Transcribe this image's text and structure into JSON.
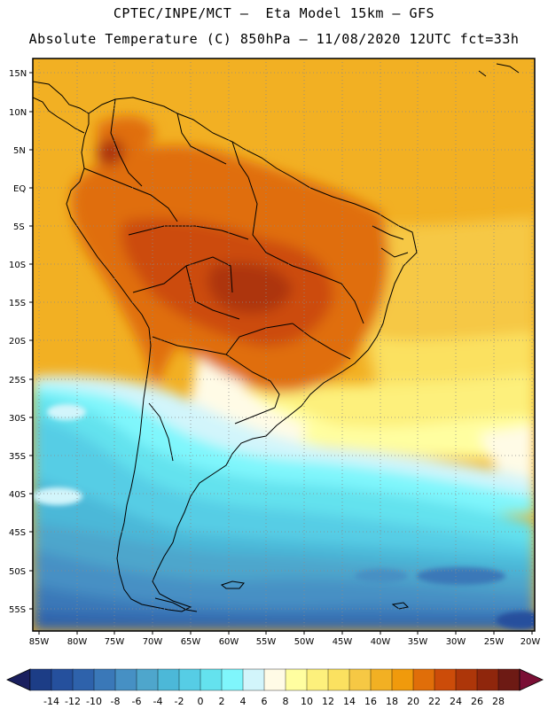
{
  "header": {
    "line1": "CPTEC/INPE/MCT –  Eta Model 15km – GFS",
    "line2": "Absolute Temperature (C) 850hPa – 11/08/2020 12UTC fct=33h"
  },
  "map": {
    "region": "South America",
    "lon_range": [
      -85,
      -20
    ],
    "lat_range": [
      -58,
      17
    ],
    "lat_ticks": [
      "15N",
      "10N",
      "5N",
      "EQ",
      "5S",
      "10S",
      "15S",
      "20S",
      "25S",
      "30S",
      "35S",
      "40S",
      "45S",
      "50S",
      "55S"
    ],
    "lon_ticks": [
      "85W",
      "80W",
      "75W",
      "70W",
      "65W",
      "60W",
      "55W",
      "50W",
      "45W",
      "40W",
      "35W",
      "30W",
      "25W",
      "20W"
    ]
  },
  "colorbar": {
    "labels": [
      "-14",
      "-12",
      "-10",
      "-8",
      "-6",
      "-4",
      "-2",
      "0",
      "2",
      "4",
      "6",
      "8",
      "10",
      "12",
      "14",
      "16",
      "18",
      "20",
      "22",
      "24",
      "26",
      "28"
    ],
    "colors": [
      "#1c3d86",
      "#25509d",
      "#2e62ab",
      "#3a78b8",
      "#4690c4",
      "#4ea6cc",
      "#4cb8d8",
      "#56cde5",
      "#64e2ee",
      "#7ff6fc",
      "#d2f5fb",
      "#fffbe6",
      "#fffea0",
      "#fdf07c",
      "#fbe160",
      "#f6c844",
      "#f2b023",
      "#f09a0c",
      "#e06e09",
      "#cc4c09",
      "#ad3609",
      "#8f260c",
      "#6d1a14"
    ],
    "under_color": "#1a1f5e",
    "over_color": "#7a0f35"
  }
}
